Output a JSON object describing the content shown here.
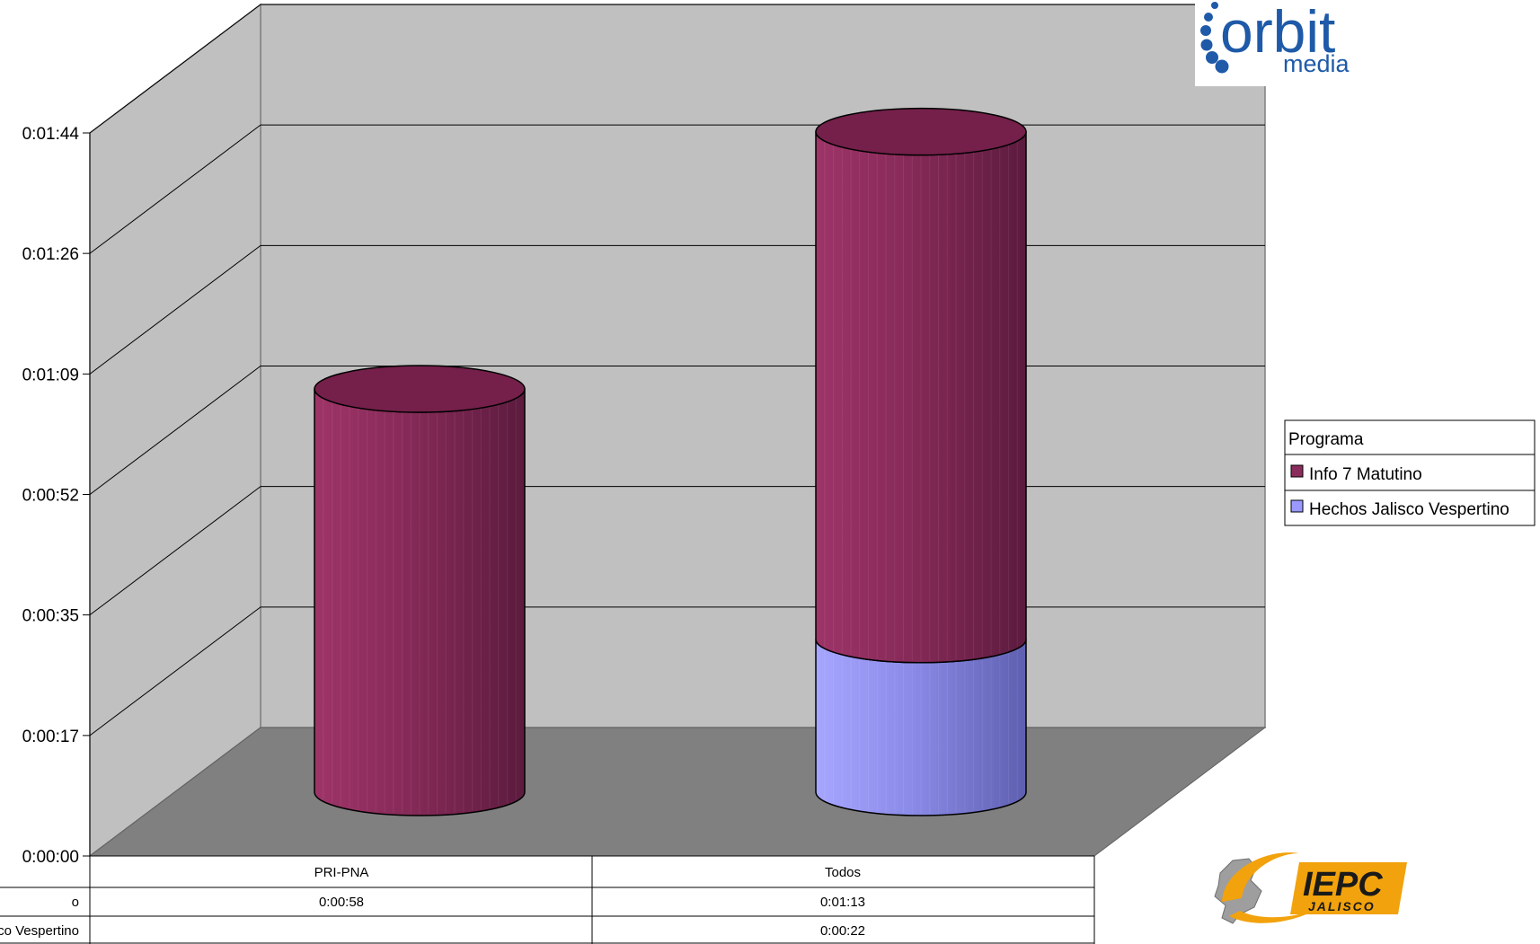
{
  "chart_data": {
    "type": "bar",
    "style": "3d-stacked-cylinder",
    "categories": [
      "PRI-PNA",
      "Todos"
    ],
    "series": [
      {
        "name": "Info 7 Matutino",
        "row_label": "o",
        "values": [
          "0:00:58",
          "0:01:13"
        ],
        "values_seconds": [
          58,
          73
        ],
        "color": "#8B2D5C"
      },
      {
        "name": "Hechos Jalisco Vespertino",
        "row_label": "co Vespertino",
        "values": [
          "",
          "0:00:22"
        ],
        "values_seconds": [
          0,
          22
        ],
        "color": "#9999FF"
      }
    ],
    "y_ticks": [
      "0:00:00",
      "0:00:17",
      "0:00:35",
      "0:00:52",
      "0:01:09",
      "0:01:26",
      "0:01:44"
    ],
    "y_tick_seconds": [
      0,
      17.33,
      34.67,
      52,
      69.33,
      86.67,
      104
    ],
    "ylim_seconds": [
      0,
      104
    ],
    "grid": true,
    "legend": {
      "title": "Programa",
      "placement": "right"
    },
    "data_table": true
  },
  "logos": {
    "orbit": {
      "word": "orbit",
      "sub": "media",
      "color": "#1E5AA8"
    },
    "iepc": {
      "word": "IEPC",
      "sub": "JALISCO",
      "color": "#F2A20C"
    }
  }
}
